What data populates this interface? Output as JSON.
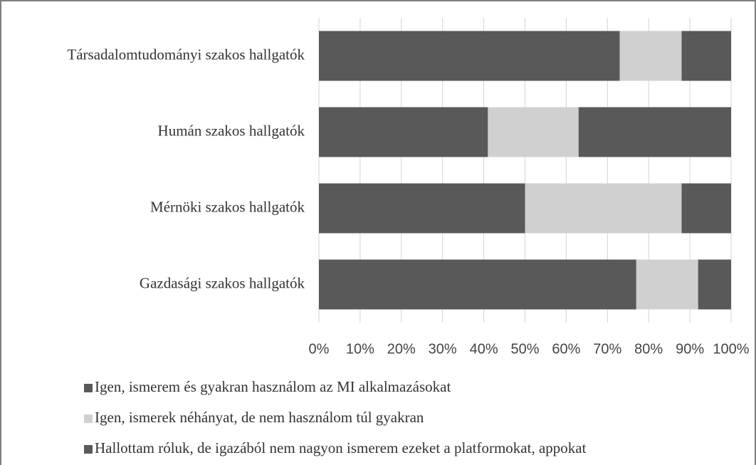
{
  "chart_data": {
    "type": "stacked-bar",
    "orientation": "horizontal",
    "categories": [
      "Társadalomtudományi szakos hallgatók",
      "Humán szakos hallgatók",
      "Mérnöki szakos hallgatók",
      "Gazdasági szakos hallgatók"
    ],
    "series": [
      {
        "name": "Igen, ismerem és gyakran használom az MI alkalmazásokat",
        "color": "#595959",
        "values": [
          73,
          41,
          50,
          77
        ]
      },
      {
        "name": "Igen, ismerek néhányat, de nem használom túl gyakran",
        "color": "#d0d0d0",
        "values": [
          15,
          22,
          38,
          15
        ]
      },
      {
        "name": "Hallottam róluk, de igazából nem nagyon ismerem ezeket a platformokat, appokat",
        "color": "#595959",
        "values": [
          12,
          37,
          12,
          8
        ]
      }
    ],
    "xlim": [
      0,
      100
    ],
    "xticks": [
      {
        "value": 0,
        "label": "0%"
      },
      {
        "value": 10,
        "label": "10%"
      },
      {
        "value": 20,
        "label": "20%"
      },
      {
        "value": 30,
        "label": "30%"
      },
      {
        "value": 40,
        "label": "40%"
      },
      {
        "value": 50,
        "label": "50%"
      },
      {
        "value": 60,
        "label": "60%"
      },
      {
        "value": 70,
        "label": "70%"
      },
      {
        "value": 80,
        "label": "80%"
      },
      {
        "value": 90,
        "label": "90%"
      },
      {
        "value": 100,
        "label": "100%"
      }
    ],
    "grid": true,
    "legend": "bottom"
  }
}
